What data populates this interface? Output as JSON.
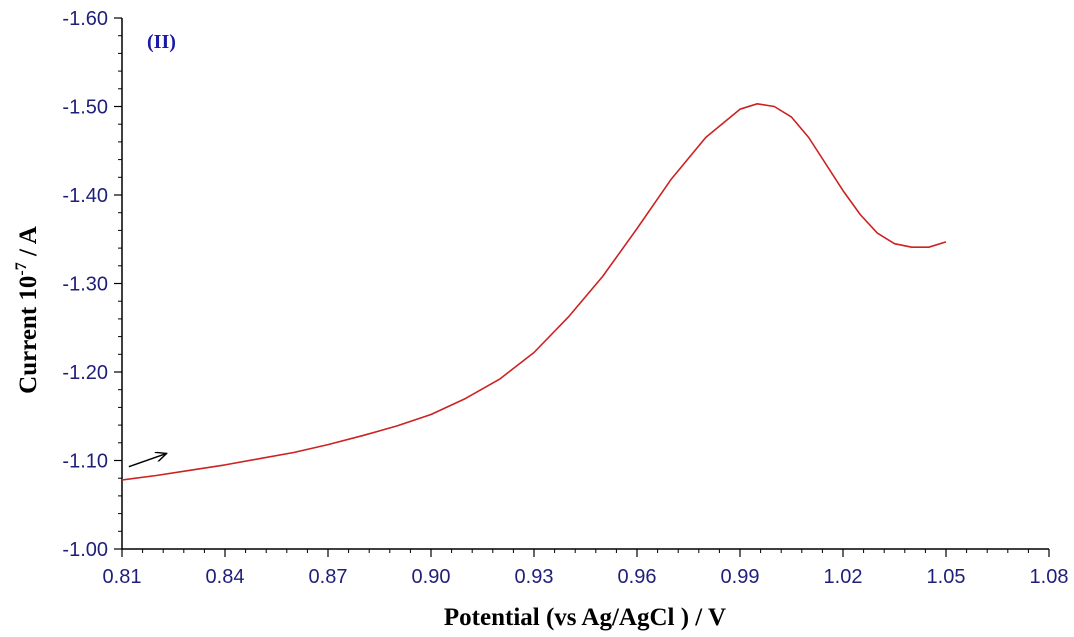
{
  "chart_data": {
    "type": "line",
    "panel_label": "(II)",
    "xlabel": "Potential (vs Ag/AgCl ) / V",
    "ylabel_prefix": "Current   10",
    "ylabel_exponent": "-7",
    "ylabel_suffix": " / A",
    "xlim": [
      0.81,
      1.08
    ],
    "ylim": [
      -1.0,
      -1.6
    ],
    "x_ticks": [
      0.81,
      0.84,
      0.87,
      0.9,
      0.93,
      0.96,
      0.99,
      1.02,
      1.05,
      1.08
    ],
    "x_tick_labels": [
      "0.81",
      "0.84",
      "0.87",
      "0.90",
      "0.93",
      "0.96",
      "0.99",
      "1.02",
      "1.05",
      "1.08"
    ],
    "y_ticks": [
      -1.0,
      -1.1,
      -1.2,
      -1.3,
      -1.4,
      -1.5,
      -1.6
    ],
    "y_tick_labels": [
      "-1.00",
      "-1.10",
      "-1.20",
      "-1.30",
      "-1.40",
      "-1.50",
      "-1.60"
    ],
    "grid": false,
    "legend": "none",
    "line_color": "#cc2222",
    "series": [
      {
        "x": [
          0.81,
          0.82,
          0.83,
          0.84,
          0.85,
          0.86,
          0.87,
          0.88,
          0.89,
          0.9,
          0.91,
          0.92,
          0.93,
          0.94,
          0.95,
          0.96,
          0.97,
          0.98,
          0.99,
          0.995,
          1.0,
          1.005,
          1.01,
          1.02,
          1.025,
          1.03,
          1.035,
          1.04,
          1.045,
          1.05
        ],
        "y": [
          -1.078,
          -1.083,
          -1.089,
          -1.095,
          -1.102,
          -1.109,
          -1.118,
          -1.128,
          -1.139,
          -1.152,
          -1.17,
          -1.192,
          -1.222,
          -1.262,
          -1.308,
          -1.362,
          -1.418,
          -1.465,
          -1.497,
          -1.503,
          -1.5,
          -1.488,
          -1.465,
          -1.405,
          -1.378,
          -1.357,
          -1.345,
          -1.341,
          -1.341,
          -1.347
        ]
      }
    ],
    "annotations": [
      {
        "type": "arrow",
        "from": [
          0.812,
          -1.093
        ],
        "to": [
          0.823,
          -1.108
        ]
      }
    ]
  }
}
